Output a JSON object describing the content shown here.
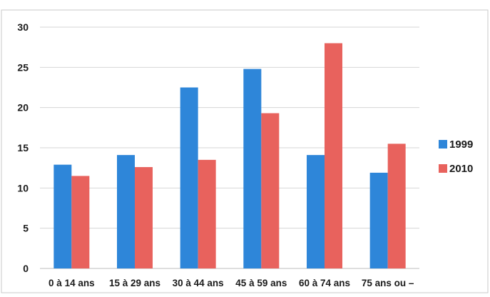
{
  "chart_data": {
    "type": "bar",
    "categories": [
      "0 à 14 ans",
      "15 à 29 ans",
      "30 à 44 ans",
      "45 à 59 ans",
      "60 à 74 ans",
      "75 ans ou –"
    ],
    "series": [
      {
        "name": "1999",
        "color": "#2e86d9",
        "values": [
          12.9,
          14.1,
          22.5,
          24.8,
          14.1,
          11.9
        ]
      },
      {
        "name": "2010",
        "color": "#e8625d",
        "values": [
          11.5,
          12.6,
          13.5,
          19.3,
          28.0,
          15.5
        ]
      }
    ],
    "ylim": [
      0,
      30
    ],
    "yticks": [
      0,
      5,
      10,
      15,
      20,
      25,
      30
    ],
    "grid": true,
    "legend": "right"
  }
}
